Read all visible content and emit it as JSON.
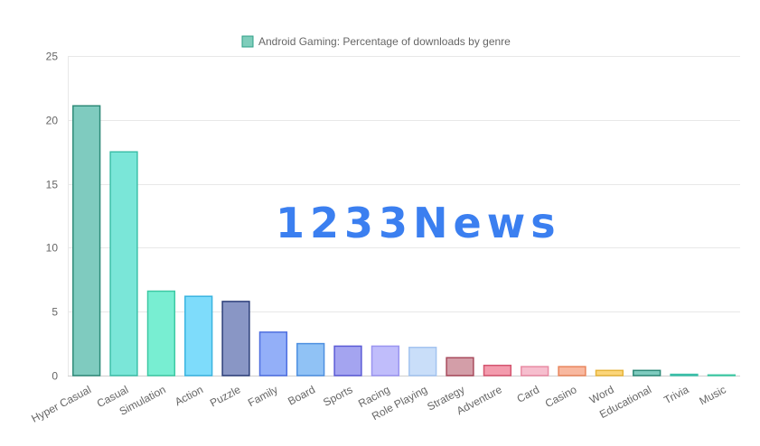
{
  "chart_data": {
    "type": "bar",
    "legend": {
      "label": "Android Gaming: Percentage of downloads by genre",
      "placement": "top-center",
      "swatch_fill": "#7fcdbb",
      "swatch_stroke": "#2b9e85"
    },
    "categories": [
      "Hyper Casual",
      "Casual",
      "Simulation",
      "Action",
      "Puzzle",
      "Family",
      "Board",
      "Sports",
      "Racing",
      "Role Playing",
      "Strategy",
      "Adventure",
      "Card",
      "Casino",
      "Word",
      "Educational",
      "Trivia",
      "Music"
    ],
    "series": [
      {
        "name": "Android Gaming: Percentage of downloads by genre",
        "values": [
          21.1,
          17.5,
          6.6,
          6.2,
          5.8,
          3.4,
          2.5,
          2.3,
          2.3,
          2.2,
          1.4,
          0.8,
          0.7,
          0.7,
          0.4,
          0.4,
          0.1,
          0.05
        ]
      }
    ],
    "colors": {
      "fills": [
        "#7fcbbf",
        "#7ae6d8",
        "#78eed2",
        "#7edcfb",
        "#8996c5",
        "#93aff8",
        "#90c2f5",
        "#a4a4f0",
        "#c0bdfb",
        "#c9def9",
        "#d39ea8",
        "#f39bad",
        "#f6bece",
        "#f8b89f",
        "#fbd57a",
        "#7fcbbf",
        "#7ae6d8",
        "#78eed2"
      ],
      "strokes": [
        "#2e8a78",
        "#3dbfa9",
        "#3dc9a4",
        "#39b4e0",
        "#2c3f7a",
        "#4d6ee0",
        "#4d8fe0",
        "#5b5bd6",
        "#9a94f0",
        "#a3c4f0",
        "#a84a5c",
        "#d4556f",
        "#e98aa3",
        "#e9855c",
        "#e6b43a",
        "#2e8a78",
        "#3dbfa9",
        "#3dc9a4"
      ]
    },
    "ylim": [
      0,
      25
    ],
    "yticks": [
      0,
      5,
      10,
      15,
      20,
      25
    ],
    "grid": true,
    "xlabel": "",
    "ylabel": ""
  },
  "watermark": "1233News"
}
